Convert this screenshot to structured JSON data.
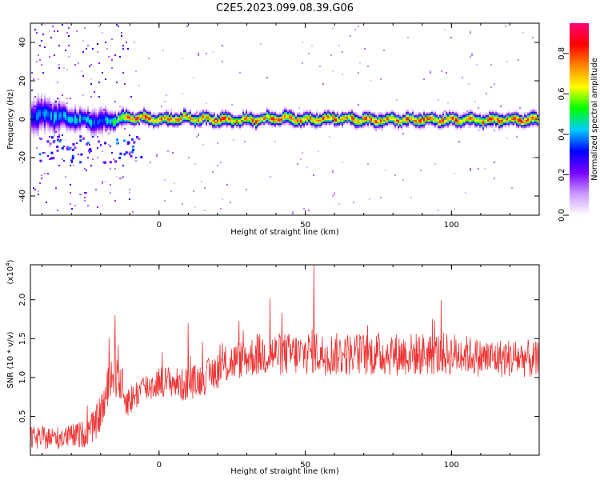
{
  "title": "C2E5.2023.099.08.39.G06",
  "chart_data": [
    {
      "type": "heatmap",
      "xlabel": "Height of straight line (km)",
      "ylabel": "Frequency (Hz)",
      "xlim": [
        -44,
        130
      ],
      "ylim": [
        -50,
        50
      ],
      "xticks": [
        0,
        50,
        100
      ],
      "yticks": [
        -40,
        -20,
        0,
        20,
        40
      ],
      "grid": false,
      "colorbar": {
        "label": "Normalized spectral amplitude",
        "range": [
          0,
          0.95
        ],
        "ticks": [
          0.0,
          0.2,
          0.4,
          0.6,
          0.8
        ],
        "tick_labels": [
          "0.0",
          "0.2",
          "0.4",
          "0.6",
          "0.8"
        ],
        "colormap": [
          "#ffffff",
          "#cc99ff",
          "#7700ff",
          "#0000ff",
          "#00ccff",
          "#00ff00",
          "#ffff00",
          "#ff8800",
          "#ff0000",
          "#ff0077"
        ]
      },
      "ridge": {
        "x": [
          -44,
          -38,
          -32,
          -26,
          -20,
          -15,
          -10,
          -5,
          0,
          10,
          20,
          30,
          40,
          50,
          60,
          70,
          80,
          90,
          100,
          110,
          120,
          130
        ],
        "center_hz": [
          2,
          3,
          1,
          0,
          -1,
          0,
          1,
          1,
          0,
          1,
          0,
          0,
          1,
          0,
          1,
          0,
          0,
          0,
          0,
          0,
          0,
          0
        ],
        "spread_hz": [
          8,
          8,
          6,
          5,
          6,
          4,
          3,
          3,
          3,
          3,
          3,
          3,
          3,
          3,
          3,
          3,
          3,
          3,
          3,
          3,
          3,
          3
        ],
        "peak_amplitude": [
          0.35,
          0.4,
          0.45,
          0.45,
          0.4,
          0.6,
          0.8,
          0.85,
          0.8,
          0.75,
          0.8,
          0.8,
          0.8,
          0.8,
          0.8,
          0.8,
          0.8,
          0.8,
          0.8,
          0.8,
          0.8,
          0.85
        ]
      }
    },
    {
      "type": "line",
      "xlabel": "Height of straight line (km)",
      "ylabel": "SNR (10 * v/v)",
      "yscale_label": "(x10",
      "yscale_exponent": "4",
      "yscale_suffix": ")",
      "xlim": [
        -44,
        130
      ],
      "ylim": [
        0,
        2.45
      ],
      "xticks": [
        0,
        50,
        100
      ],
      "yticks": [
        0.5,
        1.0,
        1.5,
        2.0
      ],
      "ytick_labels": [
        "0.5",
        "1.0",
        "1.5",
        "2.0"
      ],
      "grid": false,
      "color": "#ee3333",
      "series": [
        {
          "x": [
            -44,
            -38,
            -32,
            -26,
            -22,
            -20,
            -18,
            -16,
            -14,
            -12,
            -10,
            -6,
            -2,
            0,
            4,
            8,
            12,
            16,
            20,
            25,
            30,
            35,
            40,
            45,
            50,
            53,
            55,
            60,
            65,
            70,
            75,
            80,
            85,
            90,
            95,
            100,
            105,
            110,
            115,
            120,
            125,
            130
          ],
          "values": [
            0.22,
            0.22,
            0.23,
            0.27,
            0.38,
            0.55,
            0.75,
            1.05,
            1.1,
            0.75,
            0.7,
            0.85,
            0.9,
            0.95,
            0.95,
            0.9,
            0.95,
            1.0,
            1.1,
            1.2,
            1.25,
            1.3,
            1.3,
            1.3,
            1.3,
            1.35,
            1.3,
            1.3,
            1.3,
            1.3,
            1.3,
            1.3,
            1.3,
            1.3,
            1.3,
            1.3,
            1.3,
            1.25,
            1.25,
            1.25,
            1.25,
            1.2
          ],
          "noise_amplitude": [
            0.15,
            0.15,
            0.15,
            0.18,
            0.2,
            0.25,
            0.3,
            0.35,
            0.35,
            0.25,
            0.2,
            0.2,
            0.2,
            0.2,
            0.2,
            0.22,
            0.22,
            0.22,
            0.25,
            0.25,
            0.25,
            0.28,
            0.28,
            0.28,
            0.28,
            0.3,
            0.28,
            0.28,
            0.28,
            0.28,
            0.28,
            0.28,
            0.28,
            0.28,
            0.28,
            0.28,
            0.25,
            0.25,
            0.25,
            0.25,
            0.25,
            0.25
          ],
          "spikes": [
            {
              "x": 53,
              "value": 2.45
            },
            {
              "x": 38,
              "value": 2.02
            },
            {
              "x": -15,
              "value": 1.8
            },
            {
              "x": 10,
              "value": 1.7
            }
          ]
        }
      ]
    }
  ]
}
